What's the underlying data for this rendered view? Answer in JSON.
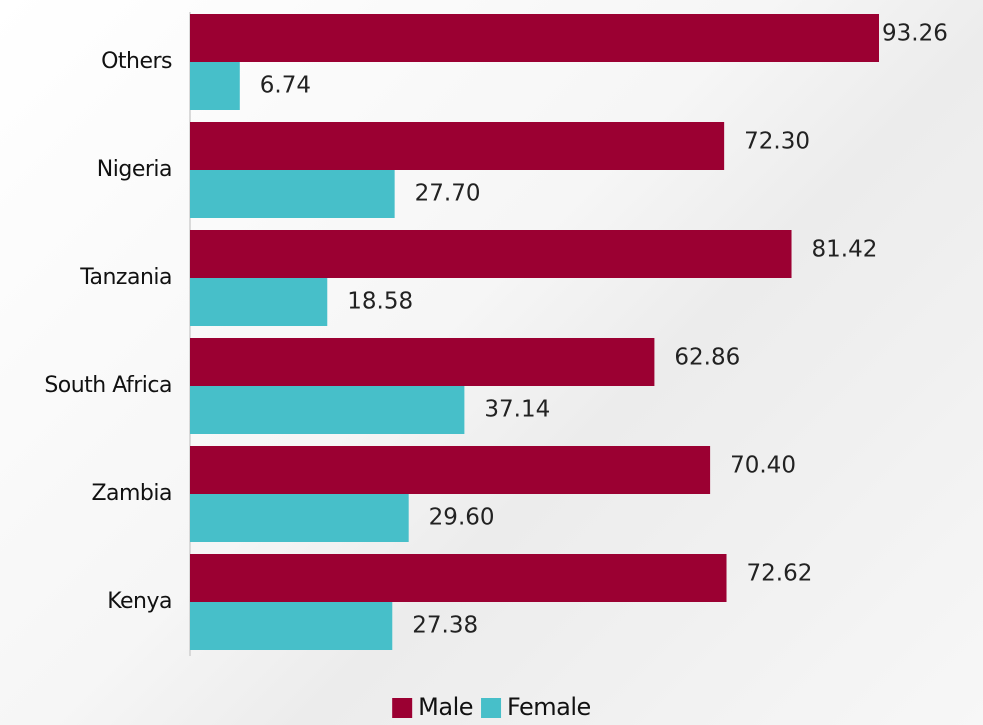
{
  "chart_data": {
    "type": "bar",
    "orientation": "horizontal",
    "categories": [
      "Others",
      "Nigeria",
      "Tanzania",
      "South Africa",
      "Zambia",
      "Kenya"
    ],
    "series": [
      {
        "name": "Male",
        "color": "#9b0032",
        "values": [
          93.26,
          72.3,
          81.42,
          62.86,
          70.4,
          72.62
        ],
        "value_labels": [
          "93.26",
          "72.30",
          "81.42",
          "62.86",
          "70.40",
          "72.62"
        ]
      },
      {
        "name": "Female",
        "color": "#47bfc9",
        "values": [
          6.74,
          27.7,
          18.58,
          37.14,
          29.6,
          27.38
        ],
        "value_labels": [
          "6.74",
          "27.70",
          "18.58",
          "37.14",
          "29.60",
          "27.38"
        ]
      }
    ],
    "legend": "bottom"
  }
}
